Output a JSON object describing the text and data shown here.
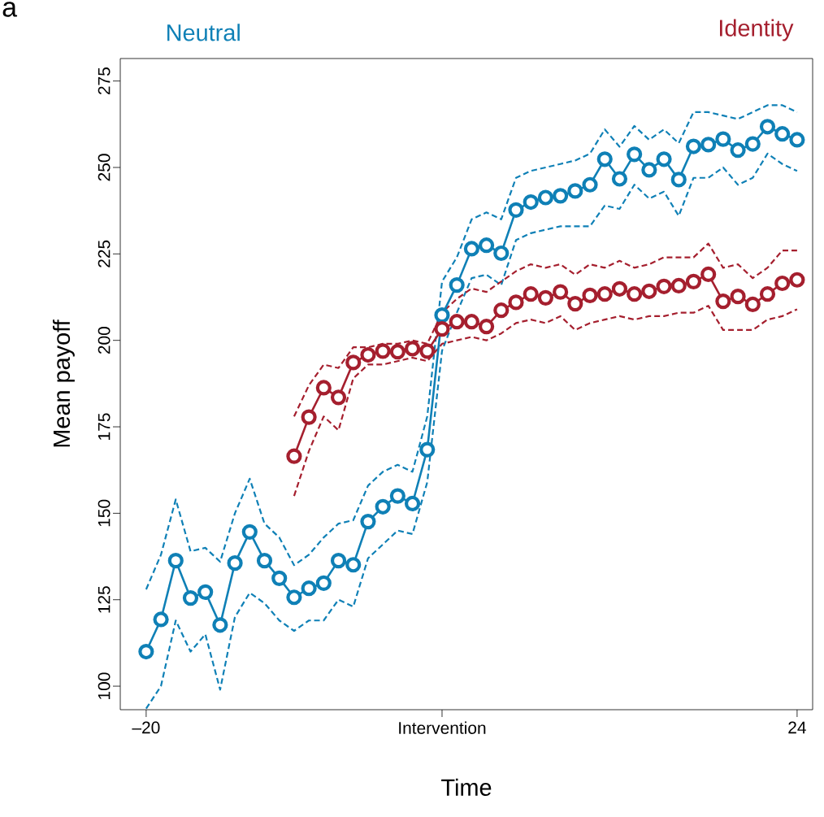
{
  "chart_data": {
    "type": "line",
    "xlabel": "Time",
    "ylabel": "Mean payoff",
    "annotations": [
      "a"
    ],
    "xlim": [
      -21.75,
      25.05
    ],
    "ylim": [
      93.2,
      281.5
    ],
    "xticks": [
      {
        "value": -20,
        "label": "–20"
      },
      {
        "value": 0,
        "label": "Intervention"
      },
      24
    ],
    "yticks": [
      100,
      125,
      150,
      175,
      200,
      225,
      250,
      275
    ],
    "grid": false,
    "marker": "circle",
    "line_style": "solid",
    "series": [
      {
        "name": "Neutral",
        "color": "#0f80b6",
        "x": [
          -20,
          -19,
          -18,
          -17,
          -16,
          -15,
          -14,
          -13,
          -12,
          -11,
          -10,
          -9,
          -8,
          -7,
          -6,
          -5,
          -4,
          -3,
          -2,
          -1,
          0,
          1,
          2,
          3,
          4,
          5,
          6,
          7,
          8,
          9,
          10,
          11,
          12,
          13,
          14,
          15,
          16,
          17,
          18,
          19,
          20,
          21,
          22,
          23,
          24
        ],
        "values": [
          110,
          119.3,
          136.3,
          125.5,
          127.2,
          117.7,
          135.6,
          144.6,
          136.3,
          131.2,
          125.7,
          128.3,
          129.8,
          136.3,
          135.1,
          147.6,
          151.9,
          155,
          152.8,
          168.4,
          207.3,
          216,
          226.5,
          227.5,
          225.2,
          237.7,
          240,
          241.3,
          241.8,
          243.2,
          245,
          252.4,
          246.7,
          253.8,
          249.3,
          252.4,
          246.5,
          256.1,
          256.6,
          258.2,
          255,
          256.8,
          261.8,
          259.7,
          258
        ]
      },
      {
        "color": "#0f80b6",
        "line_style": "dashed",
        "marker": "none",
        "x": [
          -20,
          -19,
          -18,
          -17,
          -16,
          -15,
          -14,
          -13,
          -12,
          -11,
          -10,
          -9,
          -8,
          -7,
          -6,
          -5,
          -4,
          -3,
          -2,
          -1,
          0,
          1,
          2,
          3,
          4,
          5,
          6,
          7,
          8,
          9,
          10,
          11,
          12,
          13,
          14,
          15,
          16,
          17,
          18,
          19,
          20,
          21,
          22,
          23,
          24
        ],
        "values": [
          93.5,
          100,
          119,
          110,
          115,
          99,
          120,
          127,
          124,
          119,
          116,
          119,
          119,
          125,
          123,
          137,
          141,
          145,
          144,
          159,
          197,
          208,
          218,
          219,
          216,
          229,
          231,
          232,
          233,
          233,
          233,
          239,
          238,
          245,
          241,
          243,
          236,
          247,
          247,
          250,
          245,
          247,
          254,
          251,
          249
        ]
      },
      {
        "color": "#0f80b6",
        "line_style": "dashed",
        "marker": "none",
        "x": [
          -20,
          -19,
          -18,
          -17,
          -16,
          -15,
          -14,
          -13,
          -12,
          -11,
          -10,
          -9,
          -8,
          -7,
          -6,
          -5,
          -4,
          -3,
          -2,
          -1,
          0,
          1,
          2,
          3,
          4,
          5,
          6,
          7,
          8,
          9,
          10,
          11,
          12,
          13,
          14,
          15,
          16,
          17,
          18,
          19,
          20,
          21,
          22,
          23,
          24
        ],
        "values": [
          128,
          138,
          154,
          139,
          140,
          136,
          150,
          160,
          147,
          143,
          135,
          138,
          143,
          147,
          148,
          158,
          162,
          164,
          162,
          178,
          217,
          224,
          235,
          237,
          235,
          247,
          249,
          250,
          251,
          252,
          254,
          261,
          256,
          262,
          258,
          261,
          257,
          266,
          266,
          265,
          264,
          266,
          268,
          268,
          266
        ]
      },
      {
        "name": "Identity",
        "color": "#a51f2e",
        "x": [
          -10,
          -9,
          -8,
          -7,
          -6,
          -5,
          -4,
          -3,
          -2,
          -1,
          0,
          1,
          2,
          3,
          4,
          5,
          6,
          7,
          8,
          9,
          10,
          11,
          12,
          13,
          14,
          15,
          16,
          17,
          18,
          19,
          20,
          21,
          22,
          23,
          24
        ],
        "values": [
          166.5,
          177.8,
          186.3,
          183.5,
          193.6,
          195.8,
          196.9,
          196.7,
          197.6,
          196.9,
          203.3,
          205.4,
          205.4,
          204,
          208.7,
          211,
          213.4,
          212.3,
          214,
          210.6,
          213,
          213.4,
          214.9,
          213.4,
          214.2,
          215.6,
          215.8,
          217,
          219.1,
          211.3,
          212.7,
          210.4,
          213.4,
          216.5,
          217.5
        ]
      },
      {
        "color": "#a51f2e",
        "line_style": "dashed",
        "marker": "none",
        "x": [
          -10,
          -9,
          -8,
          -7,
          -6,
          -5,
          -4,
          -3,
          -2,
          -1,
          0,
          1,
          2,
          3,
          4,
          5,
          6,
          7,
          8,
          9,
          10,
          11,
          12,
          13,
          14,
          15,
          16,
          17,
          18,
          19,
          20,
          21,
          22,
          23,
          24
        ],
        "values": [
          155,
          168,
          178,
          174,
          189,
          193,
          193,
          194,
          195,
          194,
          199,
          200,
          201,
          200,
          202,
          205,
          206,
          205,
          207,
          203,
          205,
          206,
          207,
          206,
          207,
          207,
          208,
          208,
          210,
          203,
          203,
          203,
          206,
          207,
          209
        ]
      },
      {
        "color": "#a51f2e",
        "line_style": "dashed",
        "marker": "none",
        "x": [
          -10,
          -9,
          -8,
          -7,
          -6,
          -5,
          -4,
          -3,
          -2,
          -1,
          0,
          1,
          2,
          3,
          4,
          5,
          6,
          7,
          8,
          9,
          10,
          11,
          12,
          13,
          14,
          15,
          16,
          17,
          18,
          19,
          20,
          21,
          22,
          23,
          24
        ],
        "values": [
          178,
          187,
          193,
          192,
          198,
          198,
          199,
          199,
          200,
          199,
          208,
          212,
          215,
          214,
          217,
          220,
          222,
          221,
          222,
          219,
          222,
          221,
          223,
          221,
          222,
          224,
          224,
          224,
          228,
          221,
          222,
          218,
          221,
          226,
          226
        ]
      }
    ]
  }
}
